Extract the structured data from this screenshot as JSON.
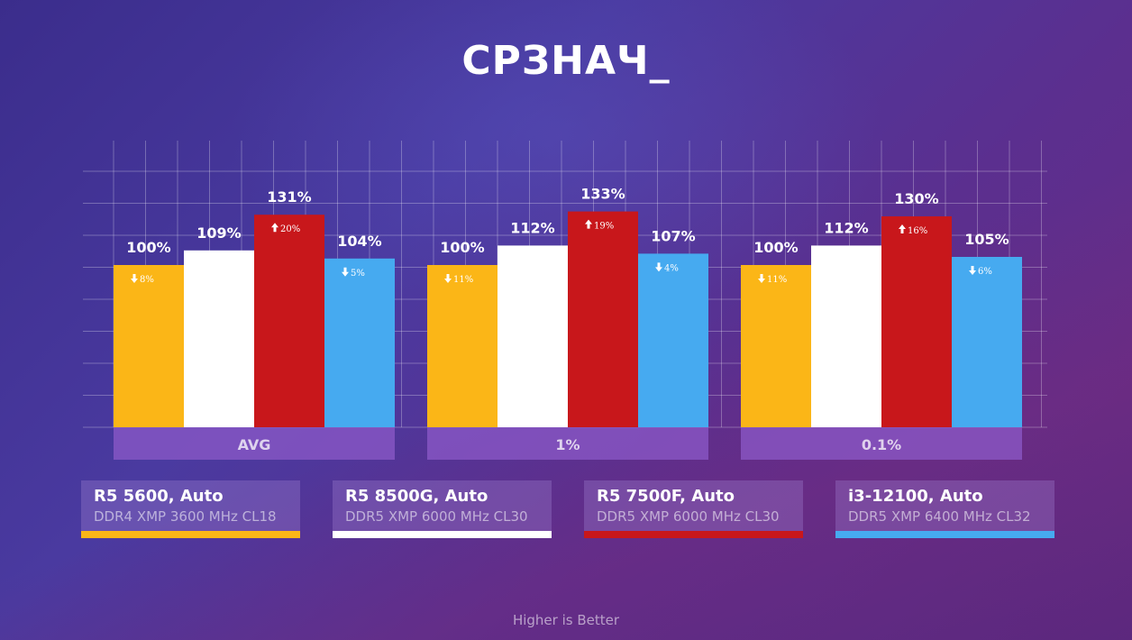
{
  "chart_data": {
    "type": "bar",
    "title": "СРЗНАЧ_",
    "categories": [
      "AVG",
      "1%",
      "0.1%"
    ],
    "series": [
      {
        "name": "R5 5600, Auto",
        "subtitle": "DDR4 XMP 3600 MHz CL18",
        "color": "#fbb617",
        "values": [
          100,
          100,
          100
        ],
        "value_labels": [
          "100%",
          "100%",
          "100%"
        ],
        "change_labels": [
          "8%",
          "11%",
          "11%"
        ],
        "change_dir": [
          "down",
          "down",
          "down"
        ]
      },
      {
        "name": "R5 8500G, Auto",
        "subtitle": "DDR5 XMP 6000 MHz CL30",
        "color": "#ffffff",
        "values": [
          109,
          112,
          112
        ],
        "value_labels": [
          "109%",
          "112%",
          "112%"
        ],
        "change_labels": [
          "",
          "",
          ""
        ],
        "change_dir": [
          "",
          "",
          ""
        ]
      },
      {
        "name": "R5 7500F, Auto",
        "subtitle": "DDR5 XMP 6000 MHz CL30",
        "color": "#c8171b",
        "values": [
          131,
          133,
          130
        ],
        "value_labels": [
          "131%",
          "133%",
          "130%"
        ],
        "change_labels": [
          "20%",
          "19%",
          "16%"
        ],
        "change_dir": [
          "up",
          "up",
          "up"
        ]
      },
      {
        "name": "i3-12100, Auto",
        "subtitle": "DDR5 XMP 6400 MHz CL32",
        "color": "#46aaf0",
        "values": [
          104,
          107,
          105
        ],
        "value_labels": [
          "104%",
          "107%",
          "105%"
        ],
        "change_labels": [
          "5%",
          "4%",
          "6%"
        ],
        "change_dir": [
          "down",
          "down",
          "down"
        ]
      }
    ],
    "ylim": [
      0,
      180
    ],
    "grid": true,
    "legend_position": "bottom",
    "footer": "Higher is Better"
  }
}
